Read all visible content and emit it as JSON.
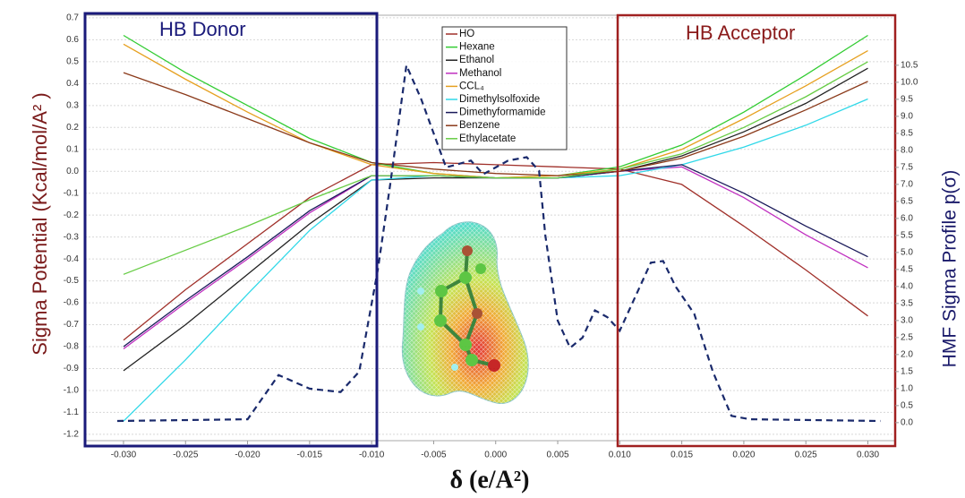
{
  "chart_data": {
    "type": "line",
    "ylabel": "Sigma Potential (Kcal/mol/A² )",
    "y2label": "HMF Sigma Profile p(σ)",
    "xlabel": "δ (e/A²)",
    "annotations": [
      "HB Donor",
      "HB Acceptor"
    ],
    "grid": true,
    "x": [
      -0.03,
      -0.025,
      -0.02,
      -0.015,
      -0.01,
      -0.005,
      0,
      0.005,
      0.01,
      0.015,
      0.02,
      0.025,
      0.03
    ],
    "xlim": [
      -0.0331,
      0.0322
    ],
    "xticks": [
      {
        "value": -0.03,
        "label": "-0.030"
      },
      -0.025,
      {
        "value": -0.02,
        "label": "-0.020"
      },
      -0.015,
      {
        "value": -0.01,
        "label": "-0.010"
      },
      -0.005,
      {
        "value": 0,
        "label": "0.000"
      },
      0.005,
      {
        "value": 0.01,
        "label": "0.010"
      },
      0.015,
      {
        "value": 0.02,
        "label": "0.020"
      },
      0.025,
      {
        "value": 0.03,
        "label": "0.030"
      }
    ],
    "ylim": [
      -1.229,
      0.712
    ],
    "yticks": [
      0.7,
      0.6,
      0.5,
      0.4,
      0.3,
      0.2,
      0.1,
      {
        "value": 0,
        "label": "0.0"
      },
      -0.1,
      -0.2,
      -0.3,
      -0.4,
      -0.5,
      -0.6,
      -0.7,
      -0.8,
      -0.9,
      {
        "value": -1,
        "label": "-1.0"
      },
      -1.1,
      -1.2
    ],
    "y2lim": [
      -0.53,
      11.97
    ],
    "y2ticks": [
      {
        "value": 10.5,
        "label": "10.5"
      },
      {
        "value": 10,
        "label": "10.0"
      },
      9.5,
      {
        "value": 9,
        "label": "9.0"
      },
      8.5,
      {
        "value": 8,
        "label": "8.0"
      },
      7.5,
      {
        "value": 7,
        "label": "7.0"
      },
      6.5,
      {
        "value": 6,
        "label": "6.0"
      },
      5.5,
      {
        "value": 5,
        "label": "5.0"
      },
      4.5,
      {
        "value": 4,
        "label": "4.0"
      },
      3.5,
      {
        "value": 3,
        "label": "3.0"
      },
      2.5,
      {
        "value": 2,
        "label": "2.0"
      },
      1.5,
      {
        "value": 1,
        "label": "1.0"
      },
      0.5,
      {
        "value": 0,
        "label": "0.0"
      }
    ],
    "series": [
      {
        "name": "HO",
        "color": "#a0302a",
        "values": [
          -0.77,
          -0.54,
          -0.33,
          -0.12,
          0.03,
          0.04,
          0.03,
          0.02,
          0.01,
          -0.06,
          -0.25,
          -0.45,
          -0.66
        ]
      },
      {
        "name": "Hexane",
        "color": "#33cc33",
        "values": [
          0.62,
          0.45,
          0.3,
          0.15,
          0.04,
          -0.01,
          -0.03,
          -0.02,
          0.02,
          0.12,
          0.27,
          0.44,
          0.62
        ]
      },
      {
        "name": "Ethanol",
        "color": "#222222",
        "values": [
          -0.91,
          -0.7,
          -0.47,
          -0.24,
          -0.04,
          -0.03,
          -0.03,
          -0.03,
          0,
          0.07,
          0.18,
          0.31,
          0.47
        ]
      },
      {
        "name": "Methanol",
        "color": "#c030c0",
        "values": [
          -0.81,
          -0.6,
          -0.4,
          -0.19,
          -0.02,
          -0.02,
          -0.03,
          -0.03,
          0,
          0.02,
          -0.12,
          -0.29,
          -0.44
        ]
      },
      {
        "name": "CCL₄",
        "color": "#e6a020",
        "values": [
          0.58,
          0.42,
          0.27,
          0.13,
          0.03,
          -0.01,
          -0.03,
          -0.02,
          0.01,
          0.1,
          0.24,
          0.39,
          0.55
        ]
      },
      {
        "name": "Dimethylsolfoxide",
        "color": "#30d8e8",
        "values": [
          -1.14,
          -0.86,
          -0.56,
          -0.27,
          -0.04,
          -0.02,
          -0.03,
          -0.03,
          -0.02,
          0.03,
          0.11,
          0.21,
          0.33
        ]
      },
      {
        "name": "Dimethyformamide",
        "color": "#1a1a5a",
        "values": [
          -0.8,
          -0.59,
          -0.39,
          -0.18,
          -0.02,
          -0.02,
          -0.03,
          -0.03,
          0,
          0.03,
          -0.1,
          -0.25,
          -0.39
        ]
      },
      {
        "name": "Benzene",
        "color": "#8b3a1a",
        "values": [
          0.45,
          0.35,
          0.24,
          0.13,
          0.04,
          0.01,
          -0.01,
          -0.02,
          0,
          0.06,
          0.16,
          0.28,
          0.41
        ]
      },
      {
        "name": "Ethylacetate",
        "color": "#66cc44",
        "values": [
          -0.47,
          -0.36,
          -0.25,
          -0.13,
          -0.02,
          -0.02,
          -0.03,
          -0.03,
          0.01,
          0.08,
          0.2,
          0.34,
          0.5
        ]
      },
      {
        "axis": "y2",
        "color": "#1a2a6c",
        "dashed": true,
        "x": [
          -0.0305,
          -0.02,
          -0.0175,
          -0.015,
          -0.0125,
          -0.011,
          -0.0095,
          -0.0085,
          -0.0072,
          -0.006,
          -0.004,
          -0.002,
          -0.001,
          0.001,
          0.0025,
          0.0035,
          0.004,
          0.005,
          0.006,
          0.007,
          0.008,
          0.009,
          0.01,
          0.011,
          0.0125,
          0.0135,
          0.0145,
          0.016,
          0.0175,
          0.019,
          0.0205,
          0.031
        ],
        "values": [
          0.05,
          0.1,
          1.4,
          1.0,
          0.9,
          1.5,
          4.5,
          7.0,
          10.5,
          9.5,
          7.5,
          7.7,
          7.3,
          7.7,
          7.8,
          7.4,
          5.5,
          3.0,
          2.2,
          2.5,
          3.3,
          3.1,
          2.7,
          3.5,
          4.7,
          4.75,
          4.0,
          3.2,
          1.5,
          0.2,
          0.1,
          0.05
        ]
      }
    ]
  }
}
